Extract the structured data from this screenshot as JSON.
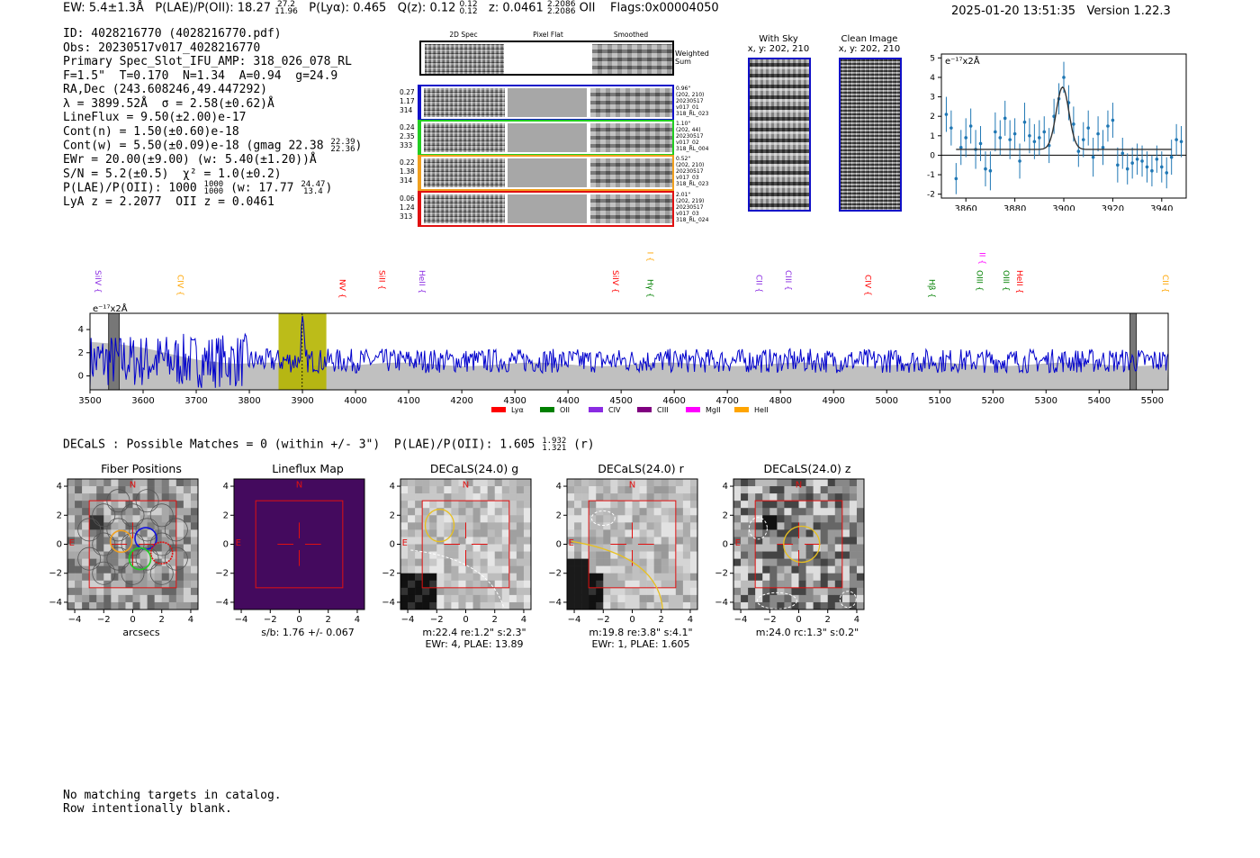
{
  "header": {
    "ew": "EW: 5.4±1.3Å",
    "plae_label": "P(LAE)/P(OII): 18.27",
    "plae_hi": "27.2",
    "plae_lo": "11.96",
    "plya": "P(Lyα): 0.465",
    "q_label": "Q(z): 0.12",
    "q_hi": "0.12",
    "q_lo": "0.12",
    "z_label": "z: 0.0461",
    "z_hi": "2.2086",
    "z_lo": "2.2086",
    "z_type": "OII",
    "flags": "Flags:0x00004050",
    "datetime": "2025-01-20 13:51:35",
    "version": "Version 1.22.3"
  },
  "info": {
    "id": "ID: 4028216770 (4028216770.pdf)",
    "obs": "Obs: 20230517v017_4028216770",
    "primary": "Primary Spec_Slot_IFU_AMP: 318_026_078_RL",
    "fstats": "F=1.5\"  T=0.170  N=1.34  A=0.94  g=24.9",
    "radec": "RA,Dec (243.608246,49.447292)",
    "lambda": "λ = 3899.52Å  σ = 2.58(±0.62)Å",
    "lineflux": "LineFlux = 9.50(±2.00)e-17",
    "contn": "Cont(n) = 1.50(±0.60)e-18",
    "contw": "Cont(w) = 5.50(±0.09)e-18 (gmag 22.38",
    "gmag_hi": "22.39",
    "gmag_lo": "22.36",
    "ewr": "EWr = 20.00(±9.00) (w: 5.40(±1.20))Å",
    "sn": "S/N = 5.2(±0.5)  χ² = 1.0(±0.2)",
    "plae": "P(LAE)/P(OII): 1000",
    "plae_hi": "1000",
    "plae_lo": "1000",
    "plae_w": "(w: 17.77",
    "plae_w_hi": "24.47",
    "plae_w_lo": "13.4",
    "z": "LyA z = 2.2077  OII z = 0.0461"
  },
  "cutouts": {
    "col_headers": [
      "2D Spec",
      "Pixel Flat",
      "Smoothed"
    ],
    "weighted_label": "Weighted Sum",
    "rows": [
      {
        "nums": [
          "0.27",
          "1.17",
          "314"
        ],
        "meta": [
          "0.96\"",
          "(202, 210)",
          "20230517",
          "v017_01",
          "318_RL_023"
        ],
        "color": "#1010c8"
      },
      {
        "nums": [
          "0.24",
          "2.35",
          "333"
        ],
        "meta": [
          "1.10\"",
          "(202, 44)",
          "20230517",
          "v017_02",
          "318_RL_004"
        ],
        "color": "#22cc22"
      },
      {
        "nums": [
          "0.22",
          "1.38",
          "314"
        ],
        "meta": [
          "0.52\"",
          "(202, 210)",
          "20230517",
          "v017_03",
          "318_RL_023"
        ],
        "color": "#f0a020"
      },
      {
        "nums": [
          "0.06",
          "1.24",
          "313"
        ],
        "meta": [
          "2.01\"",
          "(202, 219)",
          "20230517",
          "v017_03",
          "318_RL_024"
        ],
        "color": "#e01010"
      }
    ]
  },
  "sky": {
    "with_sky_title": "With Sky",
    "with_sky_sub": "x, y: 202, 210",
    "clean_title": "Clean Image",
    "clean_sub": "x, y: 202, 210"
  },
  "zoom_chart": {
    "unit_label": "e⁻¹⁷x2Å"
  },
  "full_spectrum": {
    "unit_label": "e⁻¹⁷x2Å",
    "legend": [
      {
        "label": "Lyα",
        "color": "#ff0000"
      },
      {
        "label": "OII",
        "color": "#008000"
      },
      {
        "label": "CIV",
        "color": "#8a2be2"
      },
      {
        "label": "CIII",
        "color": "#800080"
      },
      {
        "label": "MgII",
        "color": "#ff00ff"
      },
      {
        "label": "HeII",
        "color": "#ffa500"
      }
    ]
  },
  "decals": {
    "summary": "DECaLS : Possible Matches = 0 (within +/- 3\")  P(LAE)/P(OII): 1.605",
    "summary_hi": "1.932",
    "summary_lo": "1.321",
    "summary_band": "(r)"
  },
  "panels": [
    {
      "title": "Fiber Positions",
      "cap1": "arcsecs",
      "cap2": ""
    },
    {
      "title": "Lineflux Map",
      "cap1": "s/b: 1.76 +/- 0.067",
      "cap2": ""
    },
    {
      "title": "DECaLS(24.0) g",
      "cap1": "m:22.4  re:1.2\"  s:2.3\"",
      "cap2": "EWr: 4, PLAE: 13.89"
    },
    {
      "title": "DECaLS(24.0) r",
      "cap1": "m:19.8  re:3.8\"  s:4.1\"",
      "cap2": "EWr: 1, PLAE: 1.605"
    },
    {
      "title": "DECaLS(24.0) z",
      "cap1": "m:24.0 rc:1.3\"  s:0.2\"",
      "cap2": ""
    }
  ],
  "panel_marks": {
    "north": "N",
    "east": "E"
  },
  "footer": {
    "line1": "No matching targets in catalog.",
    "line2": "Row intentionally blank."
  },
  "chart_data": [
    {
      "type": "line",
      "title": "",
      "ylabel": "e⁻¹⁷x2Å",
      "xlim": [
        3850,
        3950
      ],
      "ylim": [
        -2.2,
        5.2
      ],
      "xticks": [
        3860,
        3880,
        3900,
        3920,
        3940
      ],
      "yticks": [
        -2,
        -1,
        0,
        1,
        2,
        3,
        4,
        5
      ],
      "series": [
        {
          "name": "data",
          "x": [
            3852,
            3854,
            3856,
            3858,
            3860,
            3862,
            3864,
            3866,
            3868,
            3870,
            3872,
            3874,
            3876,
            3878,
            3880,
            3882,
            3884,
            3886,
            3888,
            3890,
            3892,
            3894,
            3896,
            3898,
            3900,
            3902,
            3904,
            3906,
            3908,
            3910,
            3912,
            3914,
            3916,
            3918,
            3920,
            3922,
            3924,
            3926,
            3928,
            3930,
            3932,
            3934,
            3936,
            3938,
            3940,
            3942,
            3944,
            3946,
            3948
          ],
          "y": [
            2.1,
            1.4,
            -1.2,
            0.4,
            0.9,
            1.5,
            0.3,
            0.6,
            -0.7,
            -0.8,
            1.2,
            0.9,
            1.9,
            0.8,
            1.1,
            -0.3,
            1.7,
            1.0,
            0.7,
            0.9,
            1.2,
            0.5,
            2.0,
            2.9,
            4.0,
            2.7,
            1.6,
            0.2,
            0.8,
            1.4,
            -0.1,
            1.1,
            0.4,
            1.5,
            1.8,
            -0.5,
            0.1,
            -0.7,
            -0.4,
            -0.2,
            -0.3,
            -0.6,
            -0.8,
            -0.2,
            -0.6,
            -0.9,
            -0.1,
            0.8,
            0.7
          ],
          "err": [
            0.9,
            0.9,
            0.8,
            0.9,
            1.0,
            0.9,
            1.0,
            0.9,
            0.9,
            1.0,
            1.0,
            0.9,
            0.9,
            1.0,
            0.8,
            0.9,
            1.0,
            0.9,
            0.9,
            0.9,
            0.8,
            0.9,
            0.9,
            0.8,
            0.8,
            0.9,
            0.9,
            0.8,
            0.9,
            0.9,
            1.0,
            0.9,
            0.9,
            0.8,
            0.9,
            0.9,
            0.8,
            0.8,
            0.8,
            0.8,
            0.8,
            0.8,
            0.8,
            0.7,
            0.8,
            0.8,
            0.9,
            0.8,
            0.8
          ]
        },
        {
          "name": "gaussian fit",
          "center": 3899.5,
          "sigma": 2.58,
          "amplitude": 3.2,
          "baseline": 0.3,
          "x_range": [
            3856,
            3944
          ]
        }
      ]
    },
    {
      "type": "line",
      "title": "",
      "ylabel": "e⁻¹⁷x2Å",
      "xlim": [
        3500,
        5530
      ],
      "ylim": [
        -1.2,
        5.4
      ],
      "xticks": [
        3500,
        3600,
        3700,
        3800,
        3900,
        4000,
        4100,
        4200,
        4300,
        4400,
        4500,
        4600,
        4700,
        4800,
        4900,
        5000,
        5100,
        5200,
        5300,
        5400,
        5500
      ],
      "yticks": [
        0,
        2,
        4
      ],
      "highlight_band": [
        3855,
        3945
      ],
      "gray_bands": [
        [
          3535,
          3555
        ],
        [
          5458,
          5470
        ]
      ],
      "series": [
        {
          "name": "spectrum",
          "color": "#0000cc",
          "x_range": [
            3500,
            5530
          ],
          "typical_level": 1.3,
          "noise_sd": 0.8,
          "note": "noise dominated; large excursions near 3500-3800 and emission peak near 3900"
        },
        {
          "name": "error envelope",
          "color": "#c0c0c0",
          "x_range": [
            3500,
            5530
          ],
          "typical_level": 1.0
        }
      ],
      "line_markers": [
        {
          "label": "SiIV",
          "x": 3515,
          "color": "#8a2be2"
        },
        {
          "label": "CIV",
          "x": 3670,
          "color": "#ffa500"
        },
        {
          "label": "NV",
          "x": 3975,
          "color": "#ff0000"
        },
        {
          "label": "SiII",
          "x": 4050,
          "color": "#ff0000"
        },
        {
          "label": "HeII",
          "x": 4125,
          "color": "#8a2be2"
        },
        {
          "label": "SiIV",
          "x": 4490,
          "color": "#ff0000"
        },
        {
          "label": "CIII",
          "x": 4555,
          "color": "#ffa500"
        },
        {
          "label": "Hγ",
          "x": 4555,
          "color": "#008000"
        },
        {
          "label": "CII",
          "x": 4760,
          "color": "#8a2be2"
        },
        {
          "label": "CIII",
          "x": 4815,
          "color": "#8a2be2"
        },
        {
          "label": "CIV",
          "x": 4965,
          "color": "#ff0000"
        },
        {
          "label": "Hβ",
          "x": 5085,
          "color": "#008000"
        },
        {
          "label": "OII",
          "x": 5180,
          "color": "#ff00ff"
        },
        {
          "label": "OIII",
          "x": 5175,
          "color": "#008000"
        },
        {
          "label": "OIII",
          "x": 5225,
          "color": "#008000"
        },
        {
          "label": "HeII",
          "x": 5250,
          "color": "#ff0000"
        },
        {
          "label": "CII",
          "x": 5525,
          "color": "#ffa500"
        }
      ]
    },
    {
      "type": "heatmap",
      "title": "Fiber Positions",
      "xlabel": "arcsecs",
      "xlim": [
        -4.5,
        4.5
      ],
      "ylim": [
        -4.5,
        4.5
      ],
      "xticks": [
        -4,
        -2,
        0,
        2,
        4
      ],
      "yticks": [
        -4,
        -2,
        0,
        2,
        4
      ]
    }
  ]
}
